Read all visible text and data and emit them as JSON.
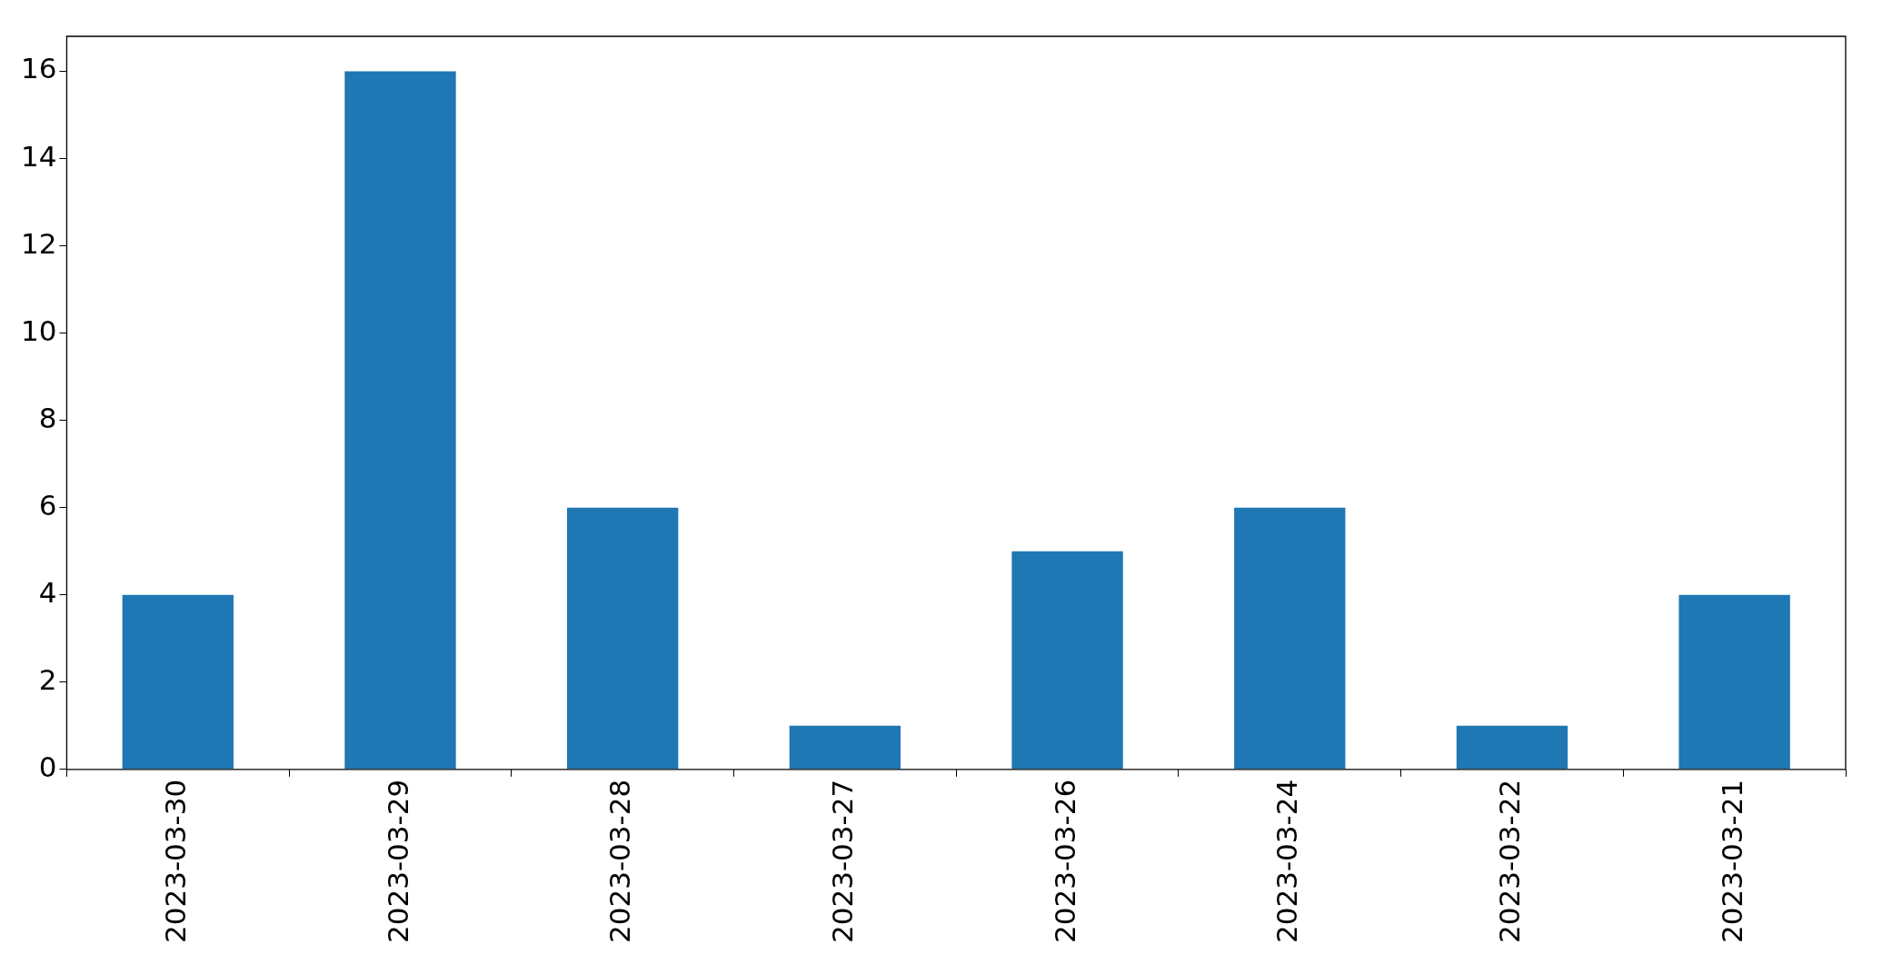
{
  "chart_data": {
    "type": "bar",
    "categories": [
      "2023-03-30",
      "2023-03-29",
      "2023-03-28",
      "2023-03-27",
      "2023-03-26",
      "2023-03-24",
      "2023-03-22",
      "2023-03-21"
    ],
    "values": [
      4,
      16,
      6,
      1,
      5,
      6,
      1,
      4
    ],
    "color": "#1f77b4",
    "ylim": [
      0,
      16.8
    ],
    "yticks": [
      0,
      2,
      4,
      6,
      8,
      10,
      12,
      14,
      16
    ],
    "grid": false,
    "legend": false
  }
}
